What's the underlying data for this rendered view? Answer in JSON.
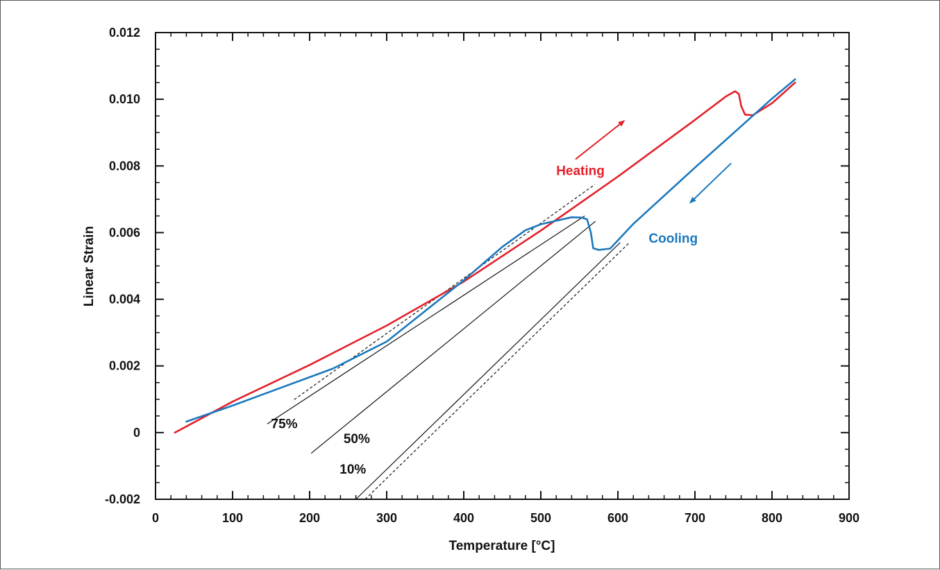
{
  "chart_data": {
    "type": "line",
    "title": "",
    "xlabel": "Temperature [°C]",
    "ylabel": "Linear Strain",
    "xlim": [
      0,
      900
    ],
    "ylim": [
      -0.002,
      0.012
    ],
    "x_ticks": [
      0,
      100,
      200,
      300,
      400,
      500,
      600,
      700,
      800,
      900
    ],
    "y_ticks": [
      -0.002,
      0,
      0.002,
      0.004,
      0.006,
      0.008,
      0.01,
      0.012
    ],
    "x_tick_labels": [
      "0",
      "100",
      "200",
      "300",
      "400",
      "500",
      "600",
      "700",
      "800",
      "900"
    ],
    "y_tick_labels": [
      "-0.002",
      "0",
      "0.002",
      "0.004",
      "0.006",
      "0.008",
      "0.010",
      "0.012"
    ],
    "grid": false,
    "series": [
      {
        "name": "Heating",
        "color": "#e3202a",
        "x": [
          25,
          100,
          200,
          300,
          400,
          500,
          600,
          700,
          740,
          752,
          757,
          760,
          765,
          775,
          800,
          830
        ],
        "y": [
          0.0,
          0.00093,
          0.00203,
          0.00321,
          0.00453,
          0.00606,
          0.00768,
          0.00938,
          0.01008,
          0.01024,
          0.01016,
          0.0098,
          0.00954,
          0.00952,
          0.00988,
          0.0105
        ]
      },
      {
        "name": "Cooling",
        "color": "#1a78bd",
        "x": [
          830,
          800,
          700,
          620,
          590,
          575,
          568,
          565,
          560,
          553,
          540,
          500,
          480,
          450,
          400,
          300,
          230,
          100,
          40
        ],
        "y": [
          0.0106,
          0.01002,
          0.00795,
          0.00626,
          0.00552,
          0.00548,
          0.00553,
          0.006,
          0.0064,
          0.00645,
          0.00646,
          0.00625,
          0.00607,
          0.00557,
          0.00457,
          0.00273,
          0.00192,
          0.00081,
          0.00033
        ]
      }
    ],
    "reference_lines": [
      {
        "label": "75%",
        "style": "solid",
        "x": [
          145,
          557
        ],
        "y": [
          0.00026,
          0.0065
        ]
      },
      {
        "label": "50%",
        "style": "solid",
        "x": [
          202,
          571
        ],
        "y": [
          -0.00062,
          0.00634
        ]
      },
      {
        "label": "10%",
        "style": "solid",
        "x": [
          260,
          603
        ],
        "y": [
          -0.002,
          0.0057
        ]
      },
      {
        "label": "",
        "style": "dashed",
        "x": [
          180,
          570
        ],
        "y": [
          0.00099,
          0.00744
        ]
      },
      {
        "label": "",
        "style": "dashed",
        "x": [
          272,
          615
        ],
        "y": [
          -0.002,
          0.0057
        ]
      }
    ],
    "annotations": [
      {
        "text": "Heating",
        "color": "#e3202a",
        "x": 520,
        "y": 0.00772
      },
      {
        "text": "Cooling",
        "color": "#1a78bd",
        "x": 640,
        "y": 0.0057
      },
      {
        "text": "75%",
        "color": "#111111",
        "x": 150,
        "y": 0.00013
      },
      {
        "text": "50%",
        "color": "#111111",
        "x": 244,
        "y": -0.00031
      },
      {
        "text": "10%",
        "color": "#111111",
        "x": 239,
        "y": -0.00123
      }
    ],
    "arrows": [
      {
        "series": "Heating",
        "color": "#e3202a",
        "x": [
          545,
          608
        ],
        "y": [
          0.0082,
          0.00935
        ]
      },
      {
        "series": "Cooling",
        "color": "#1a78bd",
        "x": [
          747,
          694
        ],
        "y": [
          0.00808,
          0.0069
        ]
      }
    ]
  }
}
